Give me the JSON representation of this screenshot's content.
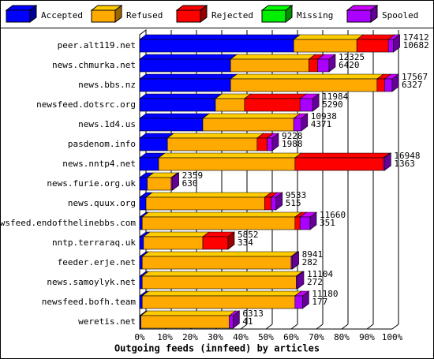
{
  "chart_data": {
    "type": "bar",
    "orientation": "horizontal",
    "stacked": true,
    "title": "Outgoing feeds (innfeed) by articles",
    "categories": [
      "peer.alt119.net",
      "news.chmurka.net",
      "news.bbs.nz",
      "newsfeed.dotsrc.org",
      "news.1d4.us",
      "pasdenom.info",
      "news.nntp4.net",
      "news.furie.org.uk",
      "news.quux.org",
      "newsfeed.endofthelinebbs.com",
      "nntp.terraraq.uk",
      "feeder.erje.net",
      "news.samoylyk.net",
      "newsfeed.bofh.team",
      "weretis.net"
    ],
    "series": [
      {
        "name": "Accepted",
        "color": "#0000ff",
        "values": [
          61,
          36,
          36,
          30,
          25,
          11,
          7.5,
          3,
          2.5,
          1,
          1.5,
          1,
          1,
          1,
          0.5
        ]
      },
      {
        "name": "Refused",
        "color": "#ffaa00",
        "values": [
          25,
          31,
          58,
          11.5,
          36,
          35.5,
          54,
          9.5,
          47,
          60.5,
          23.5,
          59,
          61,
          60.5,
          35
        ]
      },
      {
        "name": "Rejected",
        "color": "#ff0000",
        "values": [
          12.5,
          3.5,
          3,
          22,
          0,
          4,
          35,
          0,
          2.5,
          2,
          10,
          0,
          0,
          0,
          0
        ]
      },
      {
        "name": "Missing",
        "color": "#00ee00",
        "values": [
          0,
          0,
          0,
          0,
          0,
          0,
          0,
          0,
          0,
          0,
          0,
          0,
          0,
          0,
          0
        ]
      },
      {
        "name": "Spooled",
        "color": "#aa00ff",
        "values": [
          2,
          4.5,
          3,
          5,
          3,
          2,
          0.5,
          0.5,
          2,
          4,
          0,
          0.5,
          0.5,
          3,
          1.5
        ]
      }
    ],
    "bar_labels": [
      [
        17412,
        10682
      ],
      [
        12325,
        6420
      ],
      [
        17567,
        6327
      ],
      [
        11984,
        5290
      ],
      [
        10938,
        4371
      ],
      [
        9228,
        1988
      ],
      [
        16948,
        1363
      ],
      [
        2359,
        630
      ],
      [
        9533,
        515
      ],
      [
        11660,
        351
      ],
      [
        5852,
        334
      ],
      [
        8941,
        282
      ],
      [
        11104,
        272
      ],
      [
        11180,
        177
      ],
      [
        6313,
        41
      ]
    ],
    "xlim": [
      0,
      100
    ],
    "xticks": [
      {
        "value": 0,
        "label": "0%"
      },
      {
        "value": 10,
        "label": "10%"
      },
      {
        "value": 20,
        "label": "20%"
      },
      {
        "value": 30,
        "label": "30%"
      },
      {
        "value": 40,
        "label": "40%"
      },
      {
        "value": 50,
        "label": "50%"
      },
      {
        "value": 60,
        "label": "60%"
      },
      {
        "value": 70,
        "label": "70%"
      },
      {
        "value": 80,
        "label": "80%"
      },
      {
        "value": 90,
        "label": "90%"
      },
      {
        "value": 100,
        "label": "100%"
      }
    ],
    "legend": "top"
  }
}
